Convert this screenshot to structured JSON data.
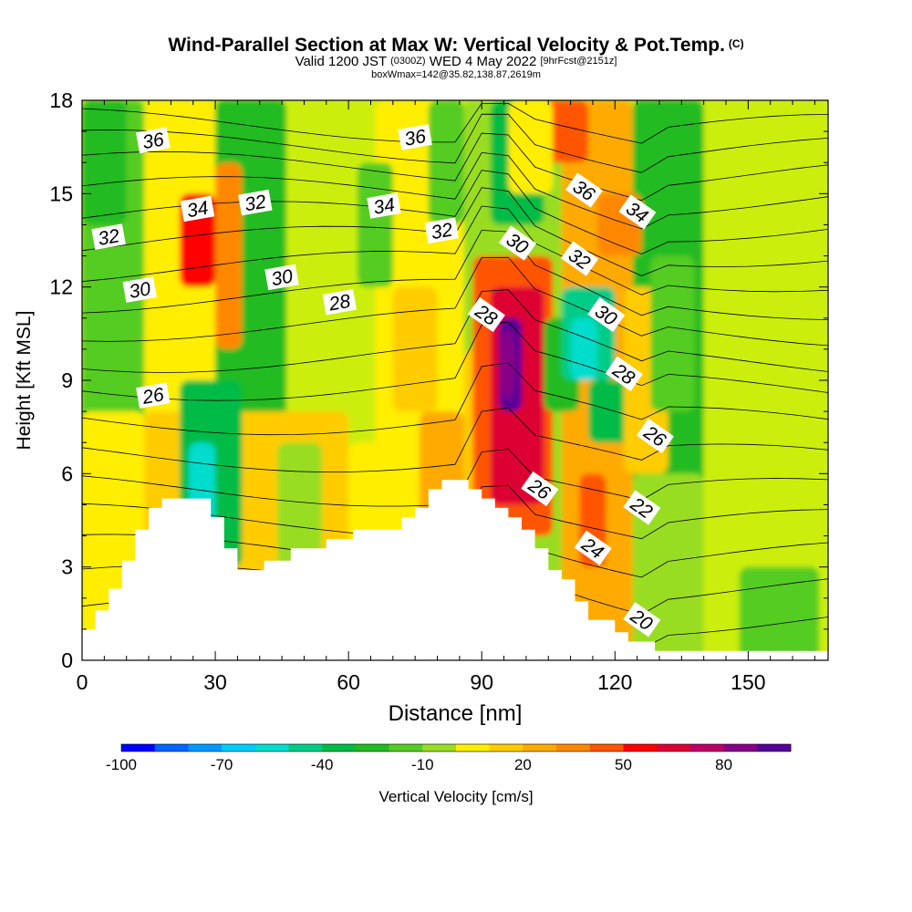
{
  "chart_data": {
    "type": "heatmap",
    "title": "Wind-Parallel Section at Max W: Vertical Velocity & Pot.Temp.",
    "title_mark": "(C)",
    "subtitle_main": "Valid 1200 JST",
    "subtitle_utc": "(0300Z)",
    "subtitle_date": "WED 4 May 2022",
    "subtitle_fcst": "[9hrFcst@2151z]",
    "subtitle2": "boxWmax=142@35.82,138.87,2619m",
    "xlabel": "Distance [nm]",
    "ylabel": "Height [Kft MSL]",
    "xlim": [
      0,
      168
    ],
    "ylim": [
      0,
      18
    ],
    "x_ticks": [
      "0",
      "30",
      "60",
      "90",
      "120",
      "150"
    ],
    "y_ticks": [
      "0",
      "3",
      "6",
      "9",
      "12",
      "15",
      "18"
    ],
    "colorbar": {
      "label": "Vertical Velocity [cm/s]",
      "min": -100,
      "max": 100,
      "step": 10,
      "tick_labels": [
        "-100",
        "-70",
        "-40",
        "-10",
        "20",
        "50",
        "80"
      ],
      "colors": [
        "#0000ff",
        "#0066ff",
        "#0099ff",
        "#00ccff",
        "#00ddcc",
        "#00cc88",
        "#00bb44",
        "#22bb22",
        "#55cc22",
        "#99dd22",
        "#ccee11",
        "#ffee00",
        "#ffcc00",
        "#ffaa00",
        "#ff8800",
        "#ff5500",
        "#ff0000",
        "#dd0033",
        "#bb0066",
        "#880088",
        "#550099"
      ]
    },
    "max_updraft": {
      "value": 142,
      "x": 96,
      "y": 9.5
    },
    "contour_labels": [
      {
        "text": "36",
        "x": 16,
        "y": 16.7
      },
      {
        "text": "36",
        "x": 75,
        "y": 16.8
      },
      {
        "text": "36",
        "x": 113,
        "y": 15.1
      },
      {
        "text": "34",
        "x": 26,
        "y": 14.5
      },
      {
        "text": "34",
        "x": 68,
        "y": 14.6
      },
      {
        "text": "34",
        "x": 125,
        "y": 14.4
      },
      {
        "text": "32",
        "x": 6,
        "y": 13.6
      },
      {
        "text": "32",
        "x": 39,
        "y": 14.7
      },
      {
        "text": "32",
        "x": 81,
        "y": 13.8
      },
      {
        "text": "32",
        "x": 112,
        "y": 12.9
      },
      {
        "text": "30",
        "x": 13,
        "y": 11.9
      },
      {
        "text": "30",
        "x": 45,
        "y": 12.3
      },
      {
        "text": "30",
        "x": 98,
        "y": 13.4
      },
      {
        "text": "30",
        "x": 118,
        "y": 11.1
      },
      {
        "text": "28",
        "x": 58,
        "y": 11.5
      },
      {
        "text": "28",
        "x": 91,
        "y": 11.1
      },
      {
        "text": "28",
        "x": 122,
        "y": 9.2
      },
      {
        "text": "26",
        "x": 16,
        "y": 8.5
      },
      {
        "text": "26",
        "x": 103,
        "y": 5.5
      },
      {
        "text": "26",
        "x": 129,
        "y": 7.2
      },
      {
        "text": "24",
        "x": 115,
        "y": 3.6
      },
      {
        "text": "22",
        "x": 126,
        "y": 4.9
      },
      {
        "text": "20",
        "x": 126,
        "y": 1.3
      }
    ],
    "terrain": [
      [
        0,
        1
      ],
      [
        3,
        1
      ],
      [
        3,
        1.6
      ],
      [
        6,
        1.6
      ],
      [
        6,
        2.3
      ],
      [
        9,
        2.3
      ],
      [
        9,
        3.2
      ],
      [
        12,
        3.2
      ],
      [
        12,
        4.2
      ],
      [
        15,
        4.2
      ],
      [
        15,
        4.9
      ],
      [
        18,
        4.9
      ],
      [
        18,
        5.2
      ],
      [
        29,
        5.2
      ],
      [
        29,
        4.6
      ],
      [
        32,
        4.6
      ],
      [
        32,
        3.6
      ],
      [
        35,
        3.6
      ],
      [
        35,
        2.9
      ],
      [
        41,
        2.9
      ],
      [
        41,
        3.2
      ],
      [
        47,
        3.2
      ],
      [
        47,
        3.6
      ],
      [
        55,
        3.6
      ],
      [
        55,
        3.9
      ],
      [
        61,
        3.9
      ],
      [
        61,
        4.2
      ],
      [
        72,
        4.2
      ],
      [
        72,
        4.6
      ],
      [
        75,
        4.6
      ],
      [
        75,
        4.9
      ],
      [
        78,
        4.9
      ],
      [
        78,
        5.5
      ],
      [
        81,
        5.5
      ],
      [
        81,
        5.8
      ],
      [
        87,
        5.8
      ],
      [
        87,
        5.5
      ],
      [
        90,
        5.5
      ],
      [
        90,
        5.2
      ],
      [
        93,
        5.2
      ],
      [
        93,
        4.9
      ],
      [
        96,
        4.9
      ],
      [
        96,
        4.6
      ],
      [
        99,
        4.6
      ],
      [
        99,
        4.2
      ],
      [
        102,
        4.2
      ],
      [
        102,
        3.6
      ],
      [
        105,
        3.6
      ],
      [
        105,
        2.9
      ],
      [
        108,
        2.9
      ],
      [
        108,
        2.6
      ],
      [
        111,
        2.6
      ],
      [
        111,
        1.9
      ],
      [
        114,
        1.9
      ],
      [
        114,
        1.3
      ],
      [
        120,
        1.3
      ],
      [
        120,
        0.9
      ],
      [
        123,
        0.9
      ],
      [
        123,
        0.6
      ],
      [
        129,
        0.6
      ],
      [
        129,
        0.3
      ],
      [
        168,
        0.3
      ]
    ]
  }
}
